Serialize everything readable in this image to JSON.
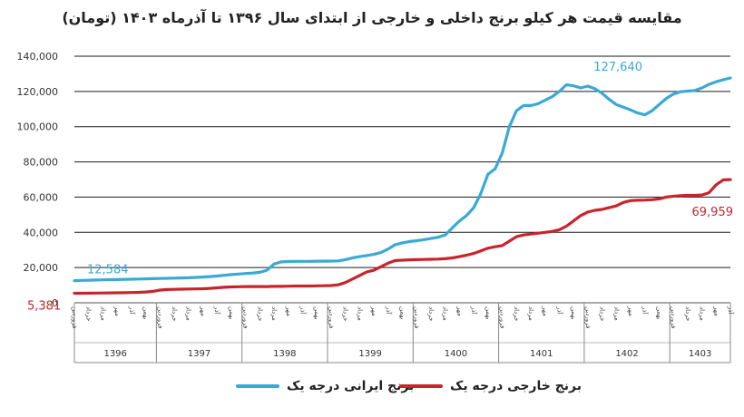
{
  "chart_data": {
    "type": "line",
    "title": "مقایسه قیمت هر کیلو برنج داخلی و خارجی از ابتدای سال ۱۳۹۶ تا آذرماه ۱۴۰۳ (تومان)",
    "y_ticks": [
      "0",
      "20,000",
      "40,000",
      "60,000",
      "80,000",
      "100,000",
      "120,000",
      "140,000"
    ],
    "ylim": [
      0,
      140000
    ],
    "grid": true,
    "legend_position": "bottom",
    "years": [
      "1396",
      "1397",
      "1398",
      "1399",
      "1400",
      "1401",
      "1402",
      "1403"
    ],
    "month_labels": [
      "فروردین",
      "اردیبهشت",
      "خرداد",
      "تیر",
      "مرداد",
      "شهریور",
      "مهر",
      "آبان",
      "آذر",
      "دی",
      "بهمن",
      "اسفند"
    ],
    "x_month_count": 93,
    "series": [
      {
        "name": "برنج ایرانی درجه یک",
        "color": "#3aa9d6",
        "start_label": "12,584",
        "end_label": "127,640",
        "values": [
          12584,
          12700,
          12800,
          12900,
          13000,
          13100,
          13200,
          13300,
          13400,
          13500,
          13600,
          13700,
          13800,
          13900,
          14000,
          14100,
          14200,
          14400,
          14600,
          14900,
          15200,
          15600,
          16000,
          16300,
          16600,
          16900,
          17300,
          18500,
          22000,
          23200,
          23400,
          23500,
          23500,
          23500,
          23600,
          23600,
          23700,
          23800,
          24500,
          25500,
          26200,
          26800,
          27500,
          28500,
          30500,
          33000,
          34000,
          34800,
          35200,
          35800,
          36500,
          37200,
          38500,
          42500,
          46500,
          49500,
          54000,
          62000,
          73000,
          76000,
          85000,
          100000,
          109000,
          112000,
          112000,
          113000,
          115000,
          117000,
          120000,
          123800,
          123200,
          122000,
          123000,
          121500,
          119000,
          115500,
          112500,
          111000,
          109500,
          107800,
          106700,
          109000,
          112500,
          116000,
          118500,
          119800,
          120200,
          120500,
          122000,
          124000,
          125500,
          126600,
          127640
        ]
      },
      {
        "name": "برنج خارجی درجه یک",
        "color": "#c9242b",
        "start_label": "5,381",
        "end_label": "69,959",
        "values": [
          5381,
          5400,
          5450,
          5500,
          5550,
          5600,
          5650,
          5700,
          5800,
          5900,
          6100,
          6500,
          7200,
          7500,
          7600,
          7700,
          7800,
          7900,
          8000,
          8200,
          8500,
          8800,
          9000,
          9100,
          9200,
          9200,
          9200,
          9200,
          9300,
          9300,
          9400,
          9500,
          9500,
          9500,
          9600,
          9700,
          9800,
          10200,
          11500,
          13500,
          15500,
          17500,
          18500,
          20500,
          22500,
          24000,
          24200,
          24400,
          24500,
          24600,
          24700,
          24800,
          25000,
          25500,
          26200,
          27000,
          28000,
          29500,
          31000,
          31800,
          32500,
          35000,
          37500,
          38500,
          39000,
          39500,
          40000,
          40500,
          41500,
          43500,
          46500,
          49500,
          51500,
          52500,
          53000,
          54000,
          55000,
          57000,
          58000,
          58200,
          58300,
          58500,
          59000,
          60000,
          60500,
          60800,
          61000,
          61000,
          61200,
          62500,
          67000,
          69800,
          69959
        ]
      }
    ]
  }
}
